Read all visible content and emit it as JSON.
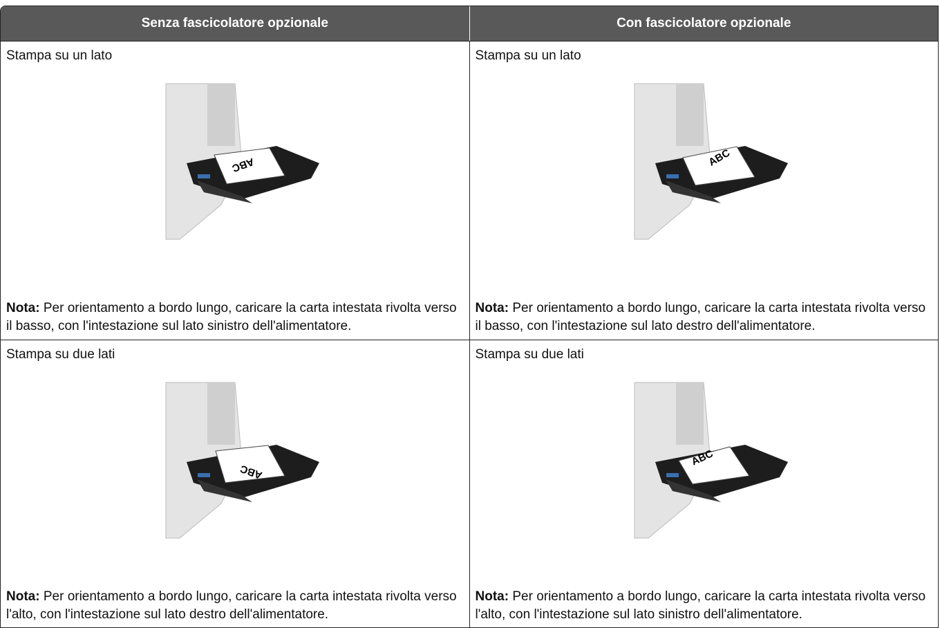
{
  "table": {
    "header": [
      "Senza fascicolatore opzionale",
      "Con fascicolatore opzionale"
    ],
    "rows": [
      [
        {
          "title": "Stampa su un lato",
          "image_label": "ABC",
          "note_label": "Nota:",
          "note": "Per orientamento a bordo lungo, caricare la carta intestata rivolta verso il basso, con l'intestazione sul lato sinistro dell'alimentatore."
        },
        {
          "title": "Stampa su un lato",
          "image_label": "ABC",
          "note_label": "Nota:",
          "note": "Per orientamento a bordo lungo, caricare la carta intestata rivolta verso il basso, con l'intestazione sul lato destro dell'alimentatore."
        }
      ],
      [
        {
          "title": "Stampa su due lati",
          "image_label": "ABC",
          "note_label": "Nota:",
          "note": "Per orientamento a bordo lungo, caricare la carta intestata rivolta verso l'alto, con l'intestazione sul lato destro dell'alimentatore."
        },
        {
          "title": "Stampa su due lati",
          "image_label": "ABC",
          "note_label": "Nota:",
          "note": "Per orientamento a bordo lungo, caricare la carta intestata rivolta verso l'alto, con l'intestazione sul lato sinistro dell'alimentatore."
        }
      ]
    ]
  }
}
